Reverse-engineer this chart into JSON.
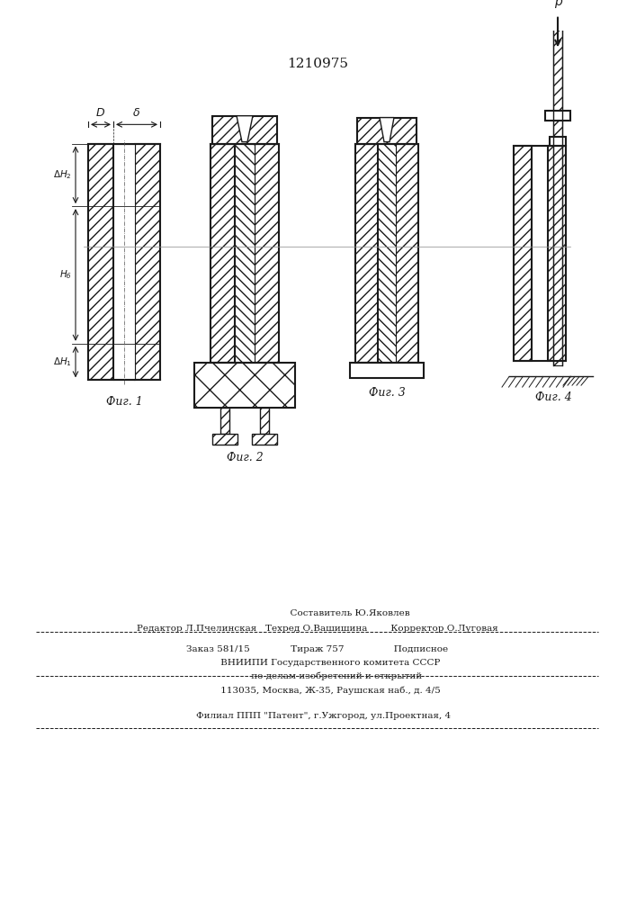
{
  "title": "1210975",
  "bg_color": "#ffffff",
  "line_color": "#1a1a1a",
  "fig1_label": "Фиг. 1",
  "fig2_label": "Фиг. 2",
  "fig3_label": "Фиг. 3",
  "fig4_label": "Фиг. 4",
  "footer_line0": "                      Составитель Ю.Яковлев",
  "footer_line1": "Редактор Л.Пчелинская   Техред О.Вашишина        Корректор О.Луговая",
  "footer_line2": "Заказ 581/15              Тираж 757                 Подписное",
  "footer_line3": "         ВНИИПИ Государственного комитета СССР",
  "footer_line4": "             по делам изобретений и открытий",
  "footer_line5": "         113035, Москва, Ж-35, Раушская наб., д. 4/5",
  "footer_line6": "    Филиал ППП \"Патент\", г.Ужгород, ул.Проектная, 4"
}
